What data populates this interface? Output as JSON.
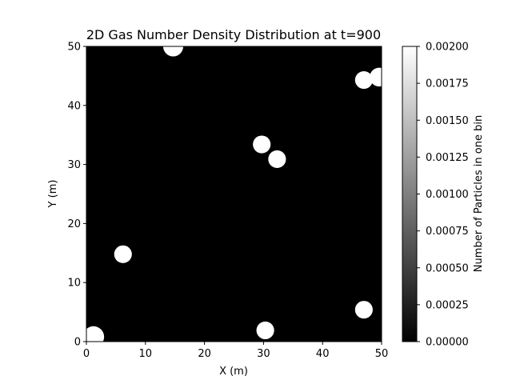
{
  "chart_data": {
    "type": "heatmap",
    "title": "2D Gas Number Density Distribution at t=900",
    "xlabel": "X (m)",
    "ylabel": "Y (m)",
    "xlim": [
      0,
      50
    ],
    "ylim": [
      0,
      50
    ],
    "xticks": [
      "0",
      "10",
      "20",
      "30",
      "40",
      "50"
    ],
    "yticks": [
      "0",
      "10",
      "20",
      "30",
      "40",
      "50"
    ],
    "colorbar": {
      "label": "Number of Particles in one bin",
      "range": [
        0.0,
        0.002
      ],
      "colormap": "gray",
      "ticks": [
        "0.00000",
        "0.00025",
        "0.00050",
        "0.00075",
        "0.00100",
        "0.00125",
        "0.00150",
        "0.00175",
        "0.00200"
      ]
    },
    "blobs": [
      {
        "x": 1.2,
        "y": 0.8,
        "r": 1.8
      },
      {
        "x": 6.2,
        "y": 14.8,
        "r": 1.5
      },
      {
        "x": 14.7,
        "y": 50.0,
        "r": 1.7
      },
      {
        "x": 29.7,
        "y": 33.4,
        "r": 1.5
      },
      {
        "x": 32.3,
        "y": 30.9,
        "r": 1.5
      },
      {
        "x": 30.3,
        "y": 1.9,
        "r": 1.5
      },
      {
        "x": 47.0,
        "y": 44.3,
        "r": 1.5
      },
      {
        "x": 49.6,
        "y": 44.8,
        "r": 1.6
      },
      {
        "x": 47.0,
        "y": 5.4,
        "r": 1.5
      }
    ],
    "background_value": 0.0,
    "blob_value": 0.002,
    "grid": false
  }
}
